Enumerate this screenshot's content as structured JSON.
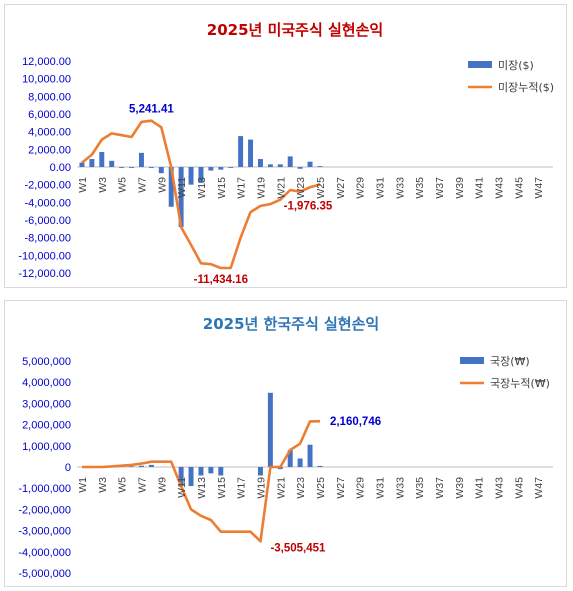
{
  "chart_data": [
    {
      "type": "bar",
      "title": "2025년 미국주식 실현손익",
      "title_color": "#c00000",
      "xlabel": "",
      "ylabel": "",
      "ylim": [
        -12000,
        12000
      ],
      "y_ticks": [
        12000,
        10000,
        8000,
        6000,
        4000,
        2000,
        0,
        -2000,
        -4000,
        -6000,
        -8000,
        -10000,
        -12000
      ],
      "y_tick_labels": [
        "12,000.00",
        "10,000.00",
        "8,000.00",
        "6,000.00",
        "4,000.00",
        "2,000.00",
        "0.00",
        "-2,000.00",
        "-4,000.00",
        "-6,000.00",
        "-8,000.00",
        "-10,000.00",
        "-12,000.00"
      ],
      "categories": [
        "W1",
        "W2",
        "W3",
        "W4",
        "W5",
        "W6",
        "W7",
        "W8",
        "W9",
        "W10",
        "W11",
        "W12",
        "W13",
        "W14",
        "W15",
        "W16",
        "W17",
        "W18",
        "W19",
        "W20",
        "W21",
        "W22",
        "W23",
        "W24",
        "W25",
        "W26",
        "W27",
        "W28",
        "W29",
        "W30",
        "W31",
        "W32",
        "W33",
        "W34",
        "W35",
        "W36",
        "W37",
        "W38",
        "W39",
        "W40",
        "W41",
        "W42",
        "W43",
        "W44",
        "W45",
        "W46",
        "W47",
        "W48"
      ],
      "x_tick_labels": [
        "W1",
        "W3",
        "W5",
        "W7",
        "W9",
        "W11",
        "W13",
        "W15",
        "W17",
        "W19",
        "W21",
        "W23",
        "W25",
        "W27",
        "W29",
        "W31",
        "W33",
        "W35",
        "W37",
        "W39",
        "W41",
        "W43",
        "W45",
        "W47"
      ],
      "series": [
        {
          "name": "미장($)",
          "kind": "bar",
          "color": "#4472c4",
          "values": [
            500,
            900,
            1700,
            700,
            -100,
            -100,
            1600,
            -100,
            -700,
            -4500,
            -6800,
            -2000,
            -1800,
            -400,
            -300,
            -100,
            3500,
            3100,
            900,
            300,
            300,
            1200,
            -200,
            600,
            100,
            0,
            0,
            0,
            0,
            0,
            0,
            0,
            0,
            0,
            0,
            0,
            0,
            0,
            0,
            0,
            0,
            0,
            0,
            0,
            0,
            0,
            0,
            0
          ]
        },
        {
          "name": "미장누적($)",
          "kind": "line",
          "color": "#ed7d31",
          "values": [
            500,
            1400,
            3100,
            3800,
            3600,
            3400,
            5100,
            5241.41,
            4500,
            0,
            -6800,
            -8800,
            -10900,
            -11000,
            -11434.16,
            -11434.16,
            -8000,
            -5100,
            -4400,
            -4200,
            -3700,
            -2600,
            -2800,
            -2300,
            -1976.35,
            null,
            null,
            null,
            null,
            null,
            null,
            null,
            null,
            null,
            null,
            null,
            null,
            null,
            null,
            null,
            null,
            null,
            null,
            null,
            null,
            null,
            null,
            null
          ]
        }
      ],
      "annotations": [
        {
          "text": "5,241.41",
          "category": "W8",
          "value": 5241.41,
          "color": "#0000cc"
        },
        {
          "text": "-11,434.16",
          "category": "W15",
          "value": -11434.16,
          "color": "#c00000"
        },
        {
          "text": "-1,976.35",
          "category": "W25",
          "value": -1976.35,
          "color": "#c00000"
        }
      ],
      "legend_position": "top-right",
      "grid": false
    },
    {
      "type": "bar",
      "title": "2025년 한국주식 실현손익",
      "title_color": "#2e75b6",
      "xlabel": "",
      "ylabel": "",
      "ylim": [
        -5000000,
        5000000
      ],
      "y_ticks": [
        5000000,
        4000000,
        3000000,
        2000000,
        1000000,
        0,
        -1000000,
        -2000000,
        -3000000,
        -4000000,
        -5000000
      ],
      "y_tick_labels": [
        "5,000,000",
        "4,000,000",
        "3,000,000",
        "2,000,000",
        "1,000,000",
        "0",
        "-1,000,000",
        "-2,000,000",
        "-3,000,000",
        "-4,000,000",
        "-5,000,000"
      ],
      "categories": [
        "W1",
        "W2",
        "W3",
        "W4",
        "W5",
        "W6",
        "W7",
        "W8",
        "W9",
        "W10",
        "W11",
        "W12",
        "W13",
        "W14",
        "W15",
        "W16",
        "W17",
        "W18",
        "W19",
        "W20",
        "W21",
        "W22",
        "W23",
        "W24",
        "W25",
        "W26",
        "W27",
        "W28",
        "W29",
        "W30",
        "W31",
        "W32",
        "W33",
        "W34",
        "W35",
        "W36",
        "W37",
        "W38",
        "W39",
        "W40",
        "W41",
        "W42",
        "W43",
        "W44",
        "W45",
        "W46",
        "W47",
        "W48"
      ],
      "x_tick_labels": [
        "W1",
        "W3",
        "W5",
        "W7",
        "W9",
        "W11",
        "W13",
        "W15",
        "W17",
        "W19",
        "W21",
        "W23",
        "W25",
        "W27",
        "W29",
        "W31",
        "W33",
        "W35",
        "W37",
        "W39",
        "W41",
        "W43",
        "W45",
        "W47"
      ],
      "series": [
        {
          "name": "국장(₩)",
          "kind": "bar",
          "color": "#4472c4",
          "values": [
            0,
            0,
            0,
            0,
            30000,
            30000,
            60000,
            100000,
            0,
            0,
            -900000,
            -900000,
            -400000,
            -300000,
            -400000,
            0,
            0,
            0,
            -400000,
            3500000,
            -100000,
            800000,
            400000,
            1050000,
            50000,
            0,
            0,
            0,
            0,
            0,
            0,
            0,
            0,
            0,
            0,
            0,
            0,
            0,
            0,
            0,
            0,
            0,
            0,
            0,
            0,
            0,
            0,
            0
          ]
        },
        {
          "name": "국장누적(₩)",
          "kind": "line",
          "color": "#ed7d31",
          "values": [
            0,
            0,
            0,
            30000,
            60000,
            100000,
            160000,
            250000,
            250000,
            250000,
            -900000,
            -2000000,
            -2300000,
            -2500000,
            -3050000,
            -3050000,
            -3050000,
            -3050000,
            -3505451,
            0,
            0,
            800000,
            1100000,
            2150000,
            2160746,
            null,
            null,
            null,
            null,
            null,
            null,
            null,
            null,
            null,
            null,
            null,
            null,
            null,
            null,
            null,
            null,
            null,
            null,
            null,
            null,
            null,
            null,
            null
          ]
        }
      ],
      "annotations": [
        {
          "text": "2,160,746",
          "category": "W25",
          "value": 2160746,
          "color": "#0000cc"
        },
        {
          "text": "-3,505,451",
          "category": "W19",
          "value": -3505451,
          "color": "#c00000"
        }
      ],
      "legend_position": "top-right",
      "grid": false
    }
  ]
}
